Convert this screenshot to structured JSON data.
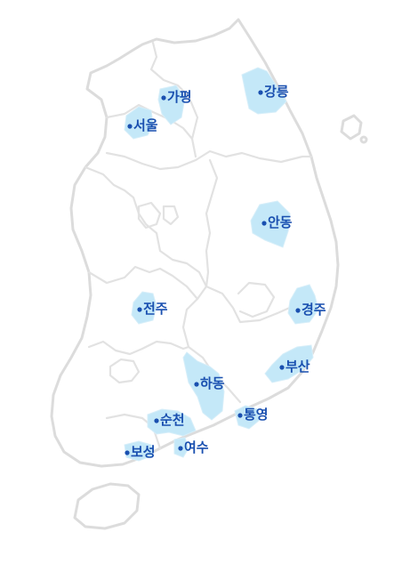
{
  "colors": {
    "region_fill": "#c4e8f8",
    "label": "#1a50b0",
    "land_outline": "#dcdcdc"
  },
  "cities": [
    {
      "id": "seoul",
      "label": "서울"
    },
    {
      "id": "gapyeong",
      "label": "가평"
    },
    {
      "id": "gangneung",
      "label": "강릉"
    },
    {
      "id": "andong",
      "label": "안동"
    },
    {
      "id": "jeonju",
      "label": "전주"
    },
    {
      "id": "gyeongju",
      "label": "경주"
    },
    {
      "id": "busan",
      "label": "부산"
    },
    {
      "id": "hadong",
      "label": "하동"
    },
    {
      "id": "tongyeong",
      "label": "통영"
    },
    {
      "id": "suncheon",
      "label": "순천"
    },
    {
      "id": "boseong",
      "label": "보성"
    },
    {
      "id": "yeosu",
      "label": "여수"
    }
  ]
}
